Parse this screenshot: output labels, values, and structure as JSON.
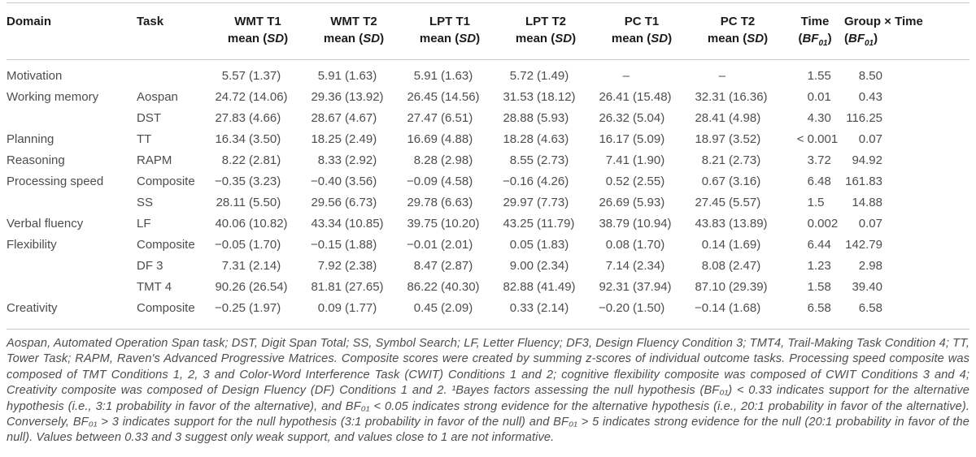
{
  "colors": {
    "rule": "#c6c6c6",
    "header_text": "#1c1c1c",
    "body_text": "#4d4d4d"
  },
  "table": {
    "headers": [
      {
        "key": "domain",
        "label": "Domain",
        "sub": null
      },
      {
        "key": "task",
        "label": "Task",
        "sub": null
      },
      {
        "key": "wmt-t1",
        "label": "WMT T1",
        "sub": {
          "pre": "mean (",
          "italic": "SD",
          "subscript": "",
          "suf": ")"
        }
      },
      {
        "key": "wmt-t2",
        "label": "WMT T2",
        "sub": {
          "pre": "mean (",
          "italic": "SD",
          "subscript": "",
          "suf": ")"
        }
      },
      {
        "key": "lpt-t1",
        "label": "LPT T1",
        "sub": {
          "pre": "mean (",
          "italic": "SD",
          "subscript": "",
          "suf": ")"
        }
      },
      {
        "key": "lpt-t2",
        "label": "LPT T2",
        "sub": {
          "pre": "mean (",
          "italic": "SD",
          "subscript": "",
          "suf": ")"
        }
      },
      {
        "key": "pc-t1",
        "label": "PC T1",
        "sub": {
          "pre": "mean (",
          "italic": "SD",
          "subscript": "",
          "suf": ")"
        }
      },
      {
        "key": "pc-t2",
        "label": "PC T2",
        "sub": {
          "pre": "mean (",
          "italic": "SD",
          "subscript": "",
          "suf": ")"
        }
      },
      {
        "key": "time",
        "label": "Time",
        "sub": {
          "pre": "(",
          "italic": "BF",
          "subscript": "01",
          "suf": ")"
        }
      },
      {
        "key": "group-x-time",
        "label": "Group × Time",
        "sub": {
          "pre": "(",
          "italic": "BF",
          "subscript": "01",
          "suf": ")"
        }
      }
    ],
    "rows": [
      {
        "domain": "Motivation",
        "task": "",
        "cells": [
          [
            "5.57",
            "(1.37)"
          ],
          [
            "5.91",
            "(1.63)"
          ],
          [
            "5.91",
            "(1.63)"
          ],
          [
            "5.72",
            "(1.49)"
          ],
          [
            "–",
            ""
          ],
          [
            "–",
            ""
          ]
        ],
        "time": "1.55",
        "group_x_time": "8.50"
      },
      {
        "domain": "Working memory",
        "task": "Aospan",
        "cells": [
          [
            "24.72",
            "(14.06)"
          ],
          [
            "29.36",
            "(13.92)"
          ],
          [
            "26.45",
            "(14.56)"
          ],
          [
            "31.53",
            "(18.12)"
          ],
          [
            "26.41",
            "(15.48)"
          ],
          [
            "32.31",
            "(16.36)"
          ]
        ],
        "time": "0.01",
        "group_x_time": "0.43"
      },
      {
        "domain": "",
        "task": "DST",
        "cells": [
          [
            "27.83",
            "(4.66)"
          ],
          [
            "28.67",
            "(4.67)"
          ],
          [
            "27.47",
            "(6.51)"
          ],
          [
            "28.88",
            "(5.93)"
          ],
          [
            "26.32",
            "(5.04)"
          ],
          [
            "28.41",
            "(4.98)"
          ]
        ],
        "time": "4.30",
        "group_x_time": "116.25"
      },
      {
        "domain": "Planning",
        "task": "TT",
        "cells": [
          [
            "16.34",
            "(3.50)"
          ],
          [
            "18.25",
            "(2.49)"
          ],
          [
            "16.69",
            "(4.88)"
          ],
          [
            "18.28",
            "(4.63)"
          ],
          [
            "16.17",
            "(5.09)"
          ],
          [
            "18.97",
            "(3.52)"
          ]
        ],
        "time": "< 0.001",
        "group_x_time": "0.07"
      },
      {
        "domain": "Reasoning",
        "task": "RAPM",
        "cells": [
          [
            "8.22",
            "(2.81)"
          ],
          [
            "8.33",
            "(2.92)"
          ],
          [
            "8.28",
            "(2.98)"
          ],
          [
            "8.55",
            "(2.73)"
          ],
          [
            "7.41",
            "(1.90)"
          ],
          [
            "8.21",
            "(2.73)"
          ]
        ],
        "time": "3.72",
        "group_x_time": "94.92"
      },
      {
        "domain": "Processing speed",
        "task": "Composite",
        "cells": [
          [
            "−0.35",
            "(3.23)"
          ],
          [
            "−0.40",
            "(3.56)"
          ],
          [
            "−0.09",
            "(4.58)"
          ],
          [
            "−0.16",
            "(4.26)"
          ],
          [
            "0.52",
            "(2.55)"
          ],
          [
            "0.67",
            "(3.16)"
          ]
        ],
        "time": "6.48",
        "group_x_time": "161.83"
      },
      {
        "domain": "",
        "task": "SS",
        "cells": [
          [
            "28.11",
            "(5.50)"
          ],
          [
            "29.56",
            "(6.73)"
          ],
          [
            "29.78",
            "(6.63)"
          ],
          [
            "29.97",
            "(7.73)"
          ],
          [
            "26.69",
            "(5.93)"
          ],
          [
            "27.45",
            "(5.57)"
          ]
        ],
        "time": "1.5",
        "group_x_time": "14.88"
      },
      {
        "domain": "Verbal fluency",
        "task": "LF",
        "cells": [
          [
            "40.06",
            "(10.82)"
          ],
          [
            "43.34",
            "(10.85)"
          ],
          [
            "39.75",
            "(10.20)"
          ],
          [
            "43.25",
            "(11.79)"
          ],
          [
            "38.79",
            "(10.94)"
          ],
          [
            "43.83",
            "(13.89)"
          ]
        ],
        "time": "0.002",
        "group_x_time": "0.07"
      },
      {
        "domain": "Flexibility",
        "task": "Composite",
        "cells": [
          [
            "−0.05",
            "(1.70)"
          ],
          [
            "−0.15",
            "(1.88)"
          ],
          [
            "−0.01",
            "(2.01)"
          ],
          [
            "0.05",
            "(1.83)"
          ],
          [
            "0.08",
            "(1.70)"
          ],
          [
            "0.14",
            "(1.69)"
          ]
        ],
        "time": "6.44",
        "group_x_time": "142.79"
      },
      {
        "domain": "",
        "task": "DF 3",
        "cells": [
          [
            "7.31",
            "(2.14)"
          ],
          [
            "7.92",
            "(2.38)"
          ],
          [
            "8.47",
            "(2.87)"
          ],
          [
            "9.00",
            "(2.34)"
          ],
          [
            "7.14",
            "(2.34)"
          ],
          [
            "8.08",
            "(2.47)"
          ]
        ],
        "time": "1.23",
        "group_x_time": "2.98"
      },
      {
        "domain": "",
        "task": "TMT 4",
        "cells": [
          [
            "90.26",
            "(26.54)"
          ],
          [
            "81.81",
            "(27.65)"
          ],
          [
            "86.22",
            "(40.30)"
          ],
          [
            "82.88",
            "(41.49)"
          ],
          [
            "92.31",
            "(37.94)"
          ],
          [
            "87.10",
            "(29.39)"
          ]
        ],
        "time": "1.58",
        "group_x_time": "39.40"
      },
      {
        "domain": "Creativity",
        "task": "Composite",
        "cells": [
          [
            "−0.25",
            "(1.97)"
          ],
          [
            "0.09",
            "(1.77)"
          ],
          [
            "0.45",
            "(2.09)"
          ],
          [
            "0.33",
            "(2.14)"
          ],
          [
            "−0.20",
            "(1.50)"
          ],
          [
            "−0.14",
            "(1.68)"
          ]
        ],
        "time": "6.58",
        "group_x_time": "6.58"
      }
    ]
  },
  "footnote": "Aospan, Automated Operation Span task; DST, Digit Span Total; SS, Symbol Search; LF, Letter Fluency; DF3, Design Fluency Condition 3; TMT4, Trail-Making Task Condition 4; TT, Tower Task; RAPM, Raven's Advanced Progressive Matrices. Composite scores were created by summing z-scores of individual outcome tasks. Processing speed composite was composed of TMT Conditions 1, 2, 3 and Color-Word Interference Task (CWIT) Conditions 1 and 2; cognitive flexibility composite was composed of CWIT Conditions 3 and 4; Creativity composite was composed of Design Fluency (DF) Conditions 1 and 2. ¹Bayes factors assessing the null hypothesis (BF₀₁) < 0.33 indicates support for the alternative hypothesis (i.e., 3:1 probability in favor of the alternative), and BF₀₁ < 0.05 indicates strong evidence for the alternative hypothesis (i.e., 20:1 probability in favor of the alternative). Conversely, BF₀₁ > 3 indicates support for the null hypothesis (3:1 probability in favor of the null) and BF₀₁ > 5 indicates strong evidence for the null (20:1 probability in favor of the null). Values between 0.33 and 3 suggest only weak support, and values close to 1 are not informative."
}
